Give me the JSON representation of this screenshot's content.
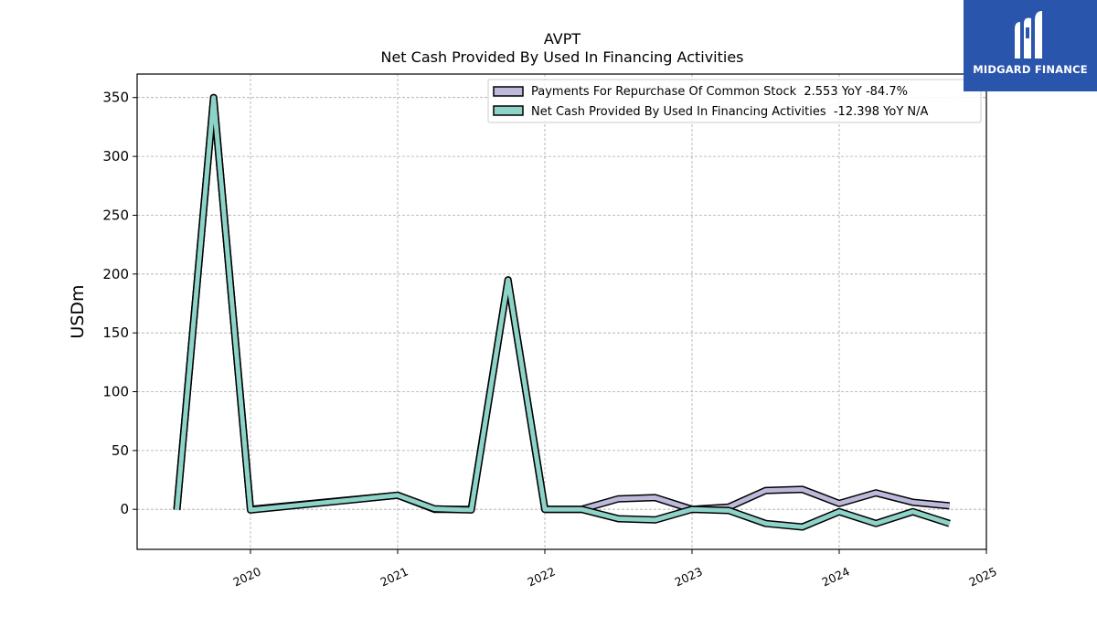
{
  "brand": {
    "name": "MIDGARD FINANCE",
    "color": "#2a55ad",
    "icon": "midgard-logo-icon"
  },
  "chart_data": {
    "type": "line",
    "title": "AVPT",
    "subtitle": "Net Cash Provided By Used In Financing Activities",
    "xlabel": "",
    "ylabel": "USDm",
    "xlim": [
      2019.23,
      2025.0
    ],
    "ylim": [
      -34,
      370
    ],
    "grid": true,
    "legend_position": "top-right",
    "x_ticks": [
      2020,
      2021,
      2022,
      2023,
      2024,
      2025
    ],
    "x_tick_labels": [
      "2020",
      "2021",
      "2022",
      "2023",
      "2024",
      "2025"
    ],
    "y_ticks": [
      0,
      50,
      100,
      150,
      200,
      250,
      300,
      350
    ],
    "y_tick_labels": [
      "0",
      "50",
      "100",
      "150",
      "200",
      "250",
      "300",
      "350"
    ],
    "series": [
      {
        "name": "Payments For Repurchase Of Common Stock",
        "legend_label": "Payments For Repurchase Of Common Stock  2.553 YoY -84.7%",
        "color": "#bcb9da",
        "x": [
          2019.5,
          2019.75,
          2020.0,
          2021.0,
          2021.25,
          2021.5,
          2021.75,
          2022.0,
          2022.25,
          2022.5,
          2022.75,
          2023.0,
          2023.25,
          2023.5,
          2023.75,
          2024.0,
          2024.25,
          2024.5,
          2024.75
        ],
        "values": [
          0,
          350,
          0,
          12,
          0,
          0,
          195,
          0,
          0,
          9,
          10,
          0,
          2,
          16,
          17,
          5,
          14,
          6,
          3
        ]
      },
      {
        "name": "Net Cash Provided By Used In Financing Activities",
        "legend_label": "Net Cash Provided By Used In Financing Activities  -12.398 YoY N/A",
        "color": "#8dd3c7",
        "x": [
          2019.5,
          2019.75,
          2020.0,
          2021.0,
          2021.25,
          2021.5,
          2021.75,
          2022.0,
          2022.25,
          2022.5,
          2022.75,
          2023.0,
          2023.25,
          2023.5,
          2023.75,
          2024.0,
          2024.25,
          2024.5,
          2024.75
        ],
        "values": [
          -0.5,
          350,
          -0.5,
          12,
          0.5,
          -0.5,
          195,
          0,
          0,
          -8,
          -9,
          0,
          -1,
          -12,
          -15,
          -2,
          -12,
          -2,
          -12
        ]
      }
    ]
  }
}
